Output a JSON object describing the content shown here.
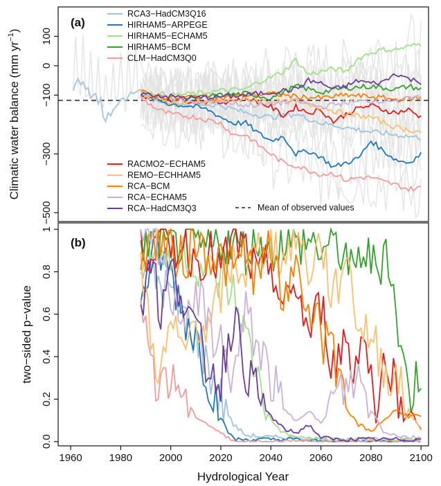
{
  "chart_data": [
    {
      "panel_label": "(a)",
      "type": "line",
      "ylabel": "Climatic water balance (mm yr⁻¹)",
      "ylabel_text": "Climatic water balance (mm yr",
      "ylabel_sup": "−1",
      "ylabel_close": ")",
      "xlim": [
        1955,
        2103
      ],
      "ylim": [
        -530,
        200
      ],
      "yticks": [
        -500,
        -300,
        -100,
        0,
        100
      ],
      "ytick_labels": [
        "−500",
        "−300",
        "−100",
        "0",
        "100"
      ],
      "observed_mean": -118,
      "legend_top": [
        {
          "name": "RCA3−HadCM3Q16",
          "color": "#9ec3dc"
        },
        {
          "name": "HIRHAM5−ARPEGE",
          "color": "#1f78b4"
        },
        {
          "name": "HIRHAM5−ECHAM5",
          "color": "#a6dd8a"
        },
        {
          "name": "HIRHAM5−BCM",
          "color": "#33a02c"
        },
        {
          "name": "CLM−HadCM3Q0",
          "color": "#f39a9a"
        }
      ],
      "legend_bottom": [
        {
          "name": "RACMO2−ECHAM5",
          "color": "#e31a1c"
        },
        {
          "name": "REMO−ECHHAM5",
          "color": "#fdbf6f"
        },
        {
          "name": "RCA−BCM",
          "color": "#ff7f00"
        },
        {
          "name": "RCA−ECHAM5",
          "color": "#cab2d6"
        },
        {
          "name": "RCA−HadCM3Q3",
          "color": "#6a3d9a"
        }
      ],
      "legend_observed": "Mean of observed values",
      "observed_series": {
        "name": "observed",
        "color": "#a9c8de",
        "x": [
          1961,
          1962,
          1963,
          1964,
          1965,
          1966,
          1967,
          1968,
          1969,
          1970,
          1971,
          1972,
          1973,
          1974,
          1975,
          1976,
          1977,
          1978,
          1979,
          1980,
          1981,
          1982,
          1983,
          1984,
          1985,
          1986,
          1987,
          1988
        ],
        "values": [
          -85,
          -60,
          -45,
          -65,
          -55,
          -80,
          -75,
          -110,
          -100,
          -95,
          -130,
          -110,
          -175,
          -190,
          -160,
          -170,
          -150,
          -140,
          -130,
          -115,
          -110,
          -120,
          -105,
          -90,
          -95,
          -90,
          -85,
          -80
        ]
      },
      "series": [
        {
          "name": "RCA3−HadCM3Q16",
          "color": "#9ec3dc",
          "x": [
            1988,
            2000,
            2010,
            2020,
            2030,
            2040,
            2050,
            2060,
            2070,
            2080,
            2090,
            2100
          ],
          "values": [
            -100,
            -130,
            -130,
            -135,
            -160,
            -175,
            -165,
            -195,
            -210,
            -225,
            -235,
            -245
          ]
        },
        {
          "name": "HIRHAM5−ARPEGE",
          "color": "#1f78b4",
          "x": [
            1988,
            2000,
            2010,
            2015,
            2020,
            2025,
            2030,
            2035,
            2040,
            2045,
            2050,
            2055,
            2060,
            2065,
            2070,
            2075,
            2080,
            2085,
            2090,
            2095,
            2100
          ],
          "values": [
            -100,
            -130,
            -140,
            -150,
            -175,
            -195,
            -195,
            -230,
            -255,
            -240,
            -300,
            -290,
            -310,
            -345,
            -330,
            -315,
            -255,
            -290,
            -320,
            -330,
            -300
          ]
        },
        {
          "name": "HIRHAM5−ECHAM5",
          "color": "#a6dd8a",
          "x": [
            1988,
            2000,
            2010,
            2020,
            2030,
            2035,
            2040,
            2045,
            2050,
            2055,
            2060,
            2065,
            2070,
            2075,
            2080,
            2085,
            2090,
            2095,
            2100
          ],
          "values": [
            -90,
            -100,
            -95,
            -85,
            -80,
            -55,
            -40,
            -20,
            20,
            -30,
            -20,
            -10,
            -20,
            25,
            45,
            55,
            55,
            65,
            75
          ]
        },
        {
          "name": "HIRHAM5−BCM",
          "color": "#33a02c",
          "x": [
            1988,
            2000,
            2010,
            2020,
            2030,
            2040,
            2050,
            2060,
            2070,
            2080,
            2090,
            2095,
            2100
          ],
          "values": [
            -100,
            -115,
            -110,
            -100,
            -95,
            -110,
            -70,
            -90,
            -75,
            -70,
            -80,
            -70,
            -80
          ]
        },
        {
          "name": "CLM−HadCM3Q0",
          "color": "#f39a9a",
          "x": [
            1988,
            1995,
            2000,
            2010,
            2020,
            2025,
            2030,
            2035,
            2040,
            2045,
            2050,
            2055,
            2060,
            2065,
            2070,
            2075,
            2080,
            2085,
            2090,
            2095,
            2100
          ],
          "values": [
            -110,
            -150,
            -165,
            -175,
            -195,
            -235,
            -235,
            -270,
            -300,
            -330,
            -340,
            -355,
            -370,
            -365,
            -390,
            -380,
            -380,
            -395,
            -405,
            -420,
            -415
          ]
        },
        {
          "name": "RACMO2−ECHAM5",
          "color": "#e31a1c",
          "x": [
            1988,
            2000,
            2010,
            2020,
            2030,
            2040,
            2045,
            2050,
            2055,
            2060,
            2065,
            2070,
            2075,
            2080,
            2085,
            2090,
            2095,
            2100
          ],
          "values": [
            -100,
            -115,
            -120,
            -125,
            -110,
            -140,
            -170,
            -140,
            -160,
            -150,
            -190,
            -165,
            -145,
            -135,
            -150,
            -160,
            -150,
            -175
          ]
        },
        {
          "name": "REMO−ECHHAM5",
          "color": "#fdbf6f",
          "x": [
            1988,
            2000,
            2010,
            2020,
            2030,
            2040,
            2050,
            2060,
            2070,
            2080,
            2090,
            2100
          ],
          "values": [
            -100,
            -125,
            -130,
            -120,
            -115,
            -120,
            -125,
            -140,
            -165,
            -175,
            -210,
            -225
          ]
        },
        {
          "name": "RCA−BCM",
          "color": "#ff7f00",
          "x": [
            1988,
            2000,
            2010,
            2020,
            2030,
            2040,
            2050,
            2060,
            2070,
            2080,
            2090,
            2100
          ],
          "values": [
            -90,
            -110,
            -105,
            -110,
            -100,
            -95,
            -105,
            -110,
            -100,
            -105,
            -115,
            -110
          ]
        },
        {
          "name": "RCA−ECHAM5",
          "color": "#cab2d6",
          "x": [
            1988,
            2000,
            2010,
            2020,
            2030,
            2040,
            2050,
            2060,
            2070,
            2080,
            2090,
            2100
          ],
          "values": [
            -95,
            -110,
            -125,
            -120,
            -135,
            -130,
            -120,
            -140,
            -125,
            -120,
            -115,
            -110
          ]
        },
        {
          "name": "RCA−HadCM3Q3",
          "color": "#6a3d9a",
          "x": [
            1988,
            2000,
            2010,
            2020,
            2030,
            2040,
            2050,
            2055,
            2060,
            2065,
            2070,
            2075,
            2080,
            2085,
            2090,
            2095,
            2100
          ],
          "values": [
            -95,
            -105,
            -110,
            -105,
            -100,
            -90,
            -80,
            -50,
            -60,
            -80,
            -70,
            -50,
            -60,
            -55,
            -25,
            -45,
            -55
          ]
        }
      ]
    },
    {
      "panel_label": "(b)",
      "type": "line",
      "xlabel": "Hydrological Year",
      "ylabel": "two−sided p−value",
      "xlim": [
        1955,
        2103
      ],
      "ylim": [
        -0.02,
        1.03
      ],
      "xticks": [
        1960,
        1980,
        2000,
        2020,
        2040,
        2060,
        2080,
        2100
      ],
      "yticks": [
        0.0,
        0.2,
        0.4,
        0.6,
        0.8,
        1.0
      ],
      "ytick_labels": [
        "0.0",
        "0.2",
        "0.4",
        "0.6",
        "0.8",
        "1"
      ],
      "series": [
        {
          "name": "RCA3−HadCM3Q16",
          "color": "#9ec3dc",
          "x": [
            1988,
            1995,
            2000,
            2005,
            2010,
            2015,
            2020,
            2025,
            2030,
            2040,
            2050,
            2060,
            2070,
            2080,
            2090,
            2100
          ],
          "values": [
            0.85,
            0.75,
            0.7,
            0.6,
            0.5,
            0.35,
            0.2,
            0.08,
            0.03,
            0.02,
            0.02,
            0.01,
            0.01,
            0.01,
            0.01,
            0.01
          ]
        },
        {
          "name": "HIRHAM5−ARPEGE",
          "color": "#1f78b4",
          "x": [
            1988,
            1995,
            2000,
            2005,
            2010,
            2015,
            2018,
            2020,
            2022,
            2024,
            2026,
            2030,
            2040,
            2050,
            2060,
            2070,
            2080,
            2090,
            2100
          ],
          "values": [
            0.7,
            0.9,
            0.8,
            0.6,
            0.5,
            0.3,
            0.2,
            0.12,
            0.06,
            0.03,
            0.01,
            0.01,
            0.01,
            0.01,
            0.0,
            0.0,
            0.0,
            0.0,
            0.0
          ]
        },
        {
          "name": "HIRHAM5−ECHAM5",
          "color": "#a6dd8a",
          "x": [
            1988,
            1995,
            2000,
            2005,
            2010,
            2015,
            2020,
            2025,
            2030,
            2035,
            2040,
            2045,
            2050,
            2060,
            2070,
            2080,
            2090,
            2100
          ],
          "values": [
            0.9,
            0.95,
            0.85,
            0.9,
            0.85,
            0.8,
            0.75,
            0.7,
            0.5,
            0.3,
            0.1,
            0.04,
            0.02,
            0.01,
            0.01,
            0.01,
            0.01,
            0.01
          ]
        },
        {
          "name": "HIRHAM5−BCM",
          "color": "#33a02c",
          "x": [
            1988,
            1995,
            2000,
            2005,
            2010,
            2015,
            2020,
            2025,
            2030,
            2035,
            2040,
            2045,
            2050,
            2055,
            2060,
            2065,
            2070,
            2073,
            2076,
            2080,
            2083,
            2086,
            2090,
            2093,
            2096,
            2100
          ],
          "values": [
            0.9,
            0.95,
            0.9,
            0.95,
            0.92,
            0.9,
            0.95,
            0.93,
            0.9,
            0.95,
            0.9,
            0.95,
            0.92,
            0.95,
            0.9,
            0.93,
            0.88,
            0.75,
            0.9,
            0.85,
            0.8,
            0.96,
            0.6,
            0.35,
            0.22,
            0.35
          ]
        },
        {
          "name": "CLM−HadCM3Q0",
          "color": "#f39a9a",
          "x": [
            1988,
            1991,
            1994,
            1997,
            2000,
            2003,
            2006,
            2010,
            2015,
            2020,
            2022,
            2024,
            2026,
            2028,
            2030,
            2040,
            2050,
            2060,
            2070,
            2080,
            2090,
            2100
          ],
          "values": [
            0.75,
            0.4,
            0.3,
            0.35,
            0.25,
            0.28,
            0.18,
            0.12,
            0.08,
            0.04,
            0.02,
            0.01,
            0.01,
            0.0,
            0.0,
            0.0,
            0.0,
            0.0,
            0.0,
            0.0,
            0.0,
            0.0
          ]
        },
        {
          "name": "RACMO2−ECHAM5",
          "color": "#e31a1c",
          "x": [
            1988,
            1995,
            2000,
            2005,
            2010,
            2015,
            2020,
            2025,
            2030,
            2035,
            2040,
            2045,
            2050,
            2055,
            2060,
            2065,
            2070,
            2073,
            2076,
            2080,
            2083,
            2086,
            2090,
            2093,
            2096,
            2100
          ],
          "values": [
            0.9,
            0.95,
            0.9,
            0.95,
            0.85,
            0.9,
            0.8,
            0.95,
            0.9,
            0.75,
            0.85,
            0.6,
            0.75,
            0.5,
            0.65,
            0.35,
            0.5,
            0.3,
            0.55,
            0.3,
            0.15,
            0.45,
            0.25,
            0.1,
            0.15,
            0.05
          ]
        },
        {
          "name": "REMO−ECHHAM5",
          "color": "#fdbf6f",
          "x": [
            1988,
            1992,
            1996,
            2000,
            2005,
            2010,
            2015,
            2020,
            2025,
            2030,
            2035,
            2040,
            2045,
            2050,
            2055,
            2060,
            2065,
            2070,
            2075,
            2080,
            2085,
            2090,
            2095,
            2100
          ],
          "values": [
            0.85,
            0.5,
            0.3,
            0.55,
            0.4,
            0.6,
            0.5,
            0.7,
            0.85,
            0.8,
            0.9,
            0.95,
            0.85,
            1.0,
            0.8,
            0.95,
            0.65,
            0.9,
            0.55,
            0.5,
            0.35,
            0.3,
            0.15,
            0.05
          ]
        },
        {
          "name": "RCA−BCM",
          "color": "#ff7f00",
          "x": [
            1988,
            1995,
            2000,
            2005,
            2010,
            2015,
            2020,
            2025,
            2030,
            2035,
            2040,
            2045,
            2050,
            2055,
            2058,
            2061,
            2064,
            2067,
            2070,
            2075,
            2080,
            2085,
            2090,
            2095,
            2100
          ],
          "values": [
            0.9,
            0.95,
            0.9,
            0.85,
            0.95,
            0.9,
            0.85,
            0.8,
            0.9,
            0.75,
            0.95,
            0.6,
            0.9,
            0.55,
            0.75,
            0.4,
            0.6,
            0.25,
            0.15,
            0.08,
            0.05,
            0.1,
            0.15,
            0.12,
            0.12
          ]
        },
        {
          "name": "RCA−ECHAM5",
          "color": "#cab2d6",
          "x": [
            1988,
            1995,
            2000,
            2005,
            2010,
            2015,
            2020,
            2025,
            2030,
            2035,
            2040,
            2045,
            2050,
            2055,
            2060,
            2065,
            2070,
            2075,
            2080,
            2085,
            2090,
            2095,
            2100
          ],
          "values": [
            0.95,
            0.9,
            0.7,
            0.6,
            0.7,
            0.55,
            0.45,
            0.3,
            0.6,
            0.45,
            0.3,
            0.15,
            0.1,
            0.15,
            0.08,
            0.2,
            0.25,
            0.3,
            0.15,
            0.05,
            0.03,
            0.02,
            0.02
          ]
        },
        {
          "name": "RCA−HadCM3Q3",
          "color": "#6a3d9a",
          "x": [
            1988,
            1992,
            1996,
            2000,
            2005,
            2010,
            2015,
            2020,
            2025,
            2030,
            2035,
            2040,
            2045,
            2050,
            2055,
            2060,
            2065,
            2070,
            2080,
            2090,
            2100
          ],
          "values": [
            0.65,
            0.9,
            0.6,
            0.8,
            0.7,
            0.5,
            0.35,
            0.3,
            0.6,
            0.35,
            0.2,
            0.12,
            0.06,
            0.04,
            0.08,
            0.02,
            0.01,
            0.01,
            0.01,
            0.01,
            0.01
          ]
        }
      ]
    }
  ]
}
